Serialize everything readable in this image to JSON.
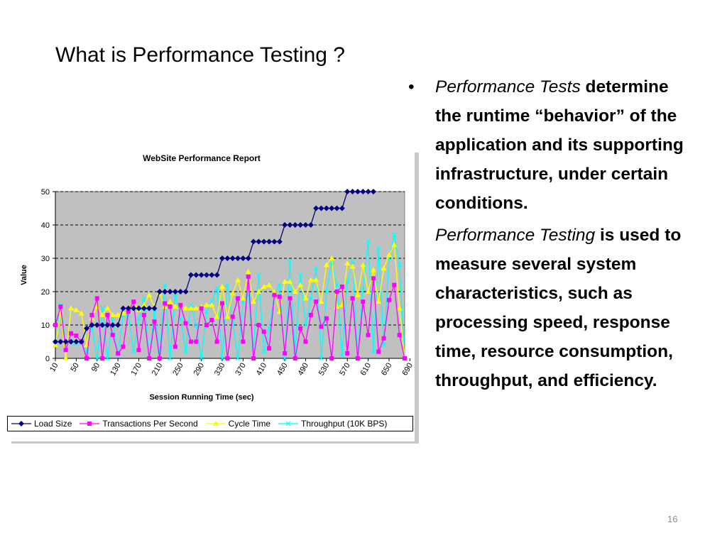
{
  "slide": {
    "title": "What is Performance Testing ?",
    "number": "16",
    "bullet": {
      "symbol": "•",
      "italic_lead": "Performance Tests",
      "text": " determine the runtime “behavior” of the application and its supporting infrastructure,  under certain conditions."
    },
    "para2": {
      "italic_lead": "Performance Testing",
      "text": " is used to measure several system characteristics, such as processing speed, response time, resource consumption, throughput, and efficiency."
    }
  },
  "chart_data": {
    "type": "line",
    "title": "WebSite Performance Report",
    "xlabel": "Session Running Time (sec)",
    "ylabel": "Value",
    "ylim": [
      0,
      50
    ],
    "yticks": [
      0,
      10,
      20,
      30,
      40,
      50
    ],
    "x_tick_labels": [
      "10",
      "50",
      "90",
      "130",
      "170",
      "210",
      "250",
      "290",
      "330",
      "370",
      "410",
      "450",
      "490",
      "530",
      "570",
      "610",
      "650",
      "690"
    ],
    "x_min": 10,
    "x_step": 10,
    "grid": "dashed horizontal",
    "legend_position": "bottom",
    "plot_background": "#c0c0c0",
    "series": [
      {
        "name": "Load Size",
        "color": "#000080",
        "marker": "diamond",
        "values": [
          5,
          5,
          5,
          5,
          5,
          5,
          9,
          10,
          10,
          10,
          10,
          10,
          10,
          15,
          15,
          15,
          15,
          15,
          15,
          15,
          20,
          20,
          20,
          20,
          20,
          20,
          25,
          25,
          25,
          25,
          25,
          25,
          30,
          30,
          30,
          30,
          30,
          30,
          35,
          35,
          35,
          35,
          35,
          35,
          40,
          40,
          40,
          40,
          40,
          40,
          45,
          45,
          45,
          45,
          45,
          45,
          50,
          50,
          50,
          50,
          50,
          50
        ]
      },
      {
        "name": "Transactions Per Second",
        "color": "#ff00ff",
        "marker": "square",
        "values": [
          10,
          15.5,
          2.5,
          7.5,
          6.8,
          5,
          0,
          13,
          18,
          0,
          13,
          7,
          1.5,
          3.5,
          14,
          17,
          2.5,
          13,
          0,
          11,
          0,
          16.5,
          15.5,
          3.5,
          16,
          10.5,
          5,
          5,
          15,
          10,
          11.5,
          5,
          16.5,
          0,
          12.5,
          18,
          5,
          24.5,
          0,
          10,
          8,
          3,
          19,
          18.5,
          1.5,
          18,
          0,
          9,
          5,
          13,
          17,
          9.5,
          12,
          0,
          20,
          21.5,
          1.5,
          18,
          0,
          17,
          7,
          24,
          2,
          6,
          17.5,
          22,
          7,
          0
        ]
      },
      {
        "name": "Cycle Time",
        "color": "#ffff00",
        "marker": "triangle",
        "values": [
          4,
          14,
          0,
          15,
          14.5,
          13.5,
          4,
          12,
          15.5,
          13,
          15,
          13,
          13,
          13.5,
          14,
          17,
          14.5,
          16,
          19,
          15.5,
          19.5,
          15.5,
          17,
          15.5,
          16,
          15,
          15,
          15,
          15.5,
          16,
          16,
          12.5,
          21.5,
          12.5,
          19.5,
          23.5,
          18,
          26,
          17,
          20,
          21.5,
          22,
          20,
          14,
          23,
          23,
          20,
          22,
          18,
          23.5,
          23.5,
          17,
          28,
          30,
          15.5,
          16,
          28.5,
          27.5,
          19,
          28,
          20,
          26.5,
          17,
          27,
          31,
          34,
          15,
          0
        ]
      },
      {
        "name": "Throughput (10K BPS)",
        "color": "#00ffff",
        "marker": "x",
        "values": [
          4,
          16,
          4,
          5,
          4.5,
          5,
          2,
          10,
          0,
          15,
          0,
          12,
          1,
          13,
          13,
          2,
          12,
          18,
          0,
          14,
          2,
          22,
          0,
          19.5,
          12,
          2,
          16,
          10,
          0,
          14,
          17,
          21,
          0,
          22,
          11,
          0,
          17,
          19,
          3,
          25,
          2,
          9,
          19,
          22,
          0,
          29,
          2,
          25,
          10,
          18,
          27,
          0,
          20,
          29,
          22,
          1,
          23,
          29,
          0,
          21,
          35,
          2,
          33,
          4,
          30,
          37,
          28,
          0
        ]
      }
    ]
  }
}
